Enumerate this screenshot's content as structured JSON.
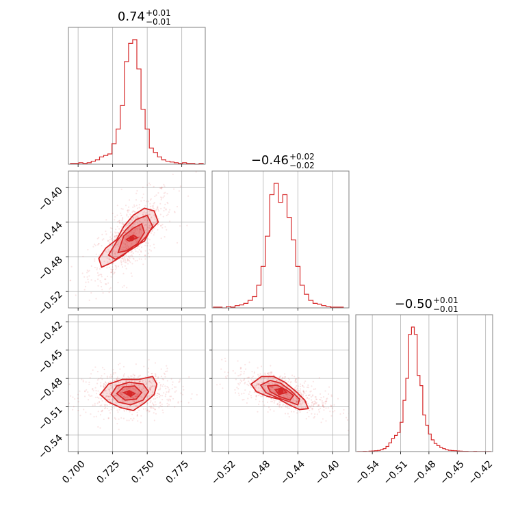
{
  "color": "#d62728",
  "chart_data": {
    "type": "corner",
    "grid": true,
    "parameters": [
      {
        "id": "p1",
        "range": [
          0.693,
          0.792
        ],
        "ticks": [
          0.7,
          0.725,
          0.75,
          0.775
        ],
        "tick_labels": [
          "0.700",
          "0.725",
          "0.750",
          "0.775"
        ],
        "title": {
          "value": "0.74",
          "plus": "+0.01",
          "minus": "−0.01"
        },
        "hist": {
          "bins": [
            0.696,
            0.699,
            0.702,
            0.705,
            0.708,
            0.711,
            0.714,
            0.717,
            0.72,
            0.723,
            0.726,
            0.729,
            0.732,
            0.735,
            0.738,
            0.741,
            0.744,
            0.747,
            0.75,
            0.753,
            0.756,
            0.759,
            0.762,
            0.765,
            0.768,
            0.771,
            0.774,
            0.777,
            0.78,
            0.783,
            0.786,
            0.789
          ],
          "counts": [
            1,
            1,
            2,
            1,
            2,
            4,
            6,
            10,
            12,
            14,
            28,
            48,
            80,
            140,
            165,
            170,
            130,
            75,
            48,
            22,
            16,
            10,
            6,
            4,
            3,
            2,
            1,
            2,
            1,
            1,
            0,
            1
          ]
        }
      },
      {
        "id": "p2",
        "range": [
          -0.539,
          -0.381
        ],
        "ticks": [
          -0.52,
          -0.48,
          -0.44,
          -0.4
        ],
        "tick_labels": [
          "−0.52",
          "−0.48",
          "−0.44",
          "−0.40"
        ],
        "title": {
          "value": "−0.46",
          "plus": "+0.02",
          "minus": "−0.02"
        },
        "hist": {
          "bins": [
            -0.535,
            -0.53,
            -0.525,
            -0.52,
            -0.515,
            -0.51,
            -0.505,
            -0.5,
            -0.495,
            -0.49,
            -0.485,
            -0.48,
            -0.475,
            -0.47,
            -0.465,
            -0.46,
            -0.455,
            -0.45,
            -0.445,
            -0.44,
            -0.435,
            -0.43,
            -0.425,
            -0.42,
            -0.415,
            -0.41,
            -0.405,
            -0.4,
            -0.395,
            -0.39
          ],
          "counts": [
            1,
            1,
            0,
            2,
            1,
            3,
            4,
            6,
            10,
            15,
            30,
            55,
            95,
            150,
            165,
            140,
            150,
            120,
            90,
            55,
            30,
            18,
            10,
            6,
            5,
            3,
            2,
            1,
            1,
            1
          ]
        }
      },
      {
        "id": "p3",
        "range": [
          -0.5575,
          -0.4125
        ],
        "ticks": [
          -0.54,
          -0.51,
          -0.48,
          -0.45,
          -0.42
        ],
        "tick_labels": [
          "−0.54",
          "−0.51",
          "−0.48",
          "−0.45",
          "−0.42"
        ],
        "title": {
          "value": "−0.50",
          "plus": "+0.01",
          "minus": "−0.01"
        },
        "hist": {
          "bins": [
            -0.554,
            -0.551,
            -0.548,
            -0.545,
            -0.542,
            -0.539,
            -0.536,
            -0.533,
            -0.53,
            -0.527,
            -0.524,
            -0.521,
            -0.518,
            -0.515,
            -0.512,
            -0.509,
            -0.506,
            -0.503,
            -0.5,
            -0.497,
            -0.494,
            -0.491,
            -0.488,
            -0.485,
            -0.482,
            -0.479,
            -0.476,
            -0.473,
            -0.47,
            -0.467,
            -0.464,
            -0.461,
            -0.458,
            -0.455,
            -0.452,
            -0.449,
            -0.446,
            -0.443,
            -0.44,
            -0.437,
            -0.434,
            -0.431,
            -0.428,
            -0.425,
            -0.422,
            -0.419,
            -0.416
          ],
          "counts": [
            1,
            1,
            2,
            1,
            3,
            4,
            6,
            8,
            12,
            20,
            35,
            60,
            90,
            110,
            130,
            200,
            350,
            500,
            800,
            850,
            800,
            520,
            450,
            250,
            180,
            120,
            80,
            55,
            40,
            28,
            20,
            12,
            9,
            7,
            6,
            4,
            3,
            2,
            2,
            1,
            1,
            2,
            1,
            1,
            1,
            0,
            1
          ]
        }
      }
    ],
    "pairs": [
      {
        "x": "p1",
        "y": "p2",
        "center": [
          0.738,
          -0.457
        ],
        "spread": [
          0.01,
          0.018
        ],
        "rho": 0.7,
        "levels": [
          [
            [
              0.735,
              -0.46
            ],
            [
              0.74,
              -0.455
            ],
            [
              0.743,
              -0.458
            ],
            [
              0.737,
              -0.462
            ]
          ],
          [
            [
              0.729,
              -0.475
            ],
            [
              0.733,
              -0.456
            ],
            [
              0.74,
              -0.447
            ],
            [
              0.746,
              -0.442
            ],
            [
              0.748,
              -0.452
            ],
            [
              0.743,
              -0.465
            ],
            [
              0.735,
              -0.473
            ]
          ],
          [
            [
              0.722,
              -0.478
            ],
            [
              0.728,
              -0.462
            ],
            [
              0.735,
              -0.448
            ],
            [
              0.742,
              -0.437
            ],
            [
              0.75,
              -0.432
            ],
            [
              0.754,
              -0.445
            ],
            [
              0.749,
              -0.457
            ],
            [
              0.743,
              -0.467
            ],
            [
              0.735,
              -0.475
            ],
            [
              0.727,
              -0.483
            ]
          ],
          [
            [
              0.715,
              -0.482
            ],
            [
              0.72,
              -0.47
            ],
            [
              0.728,
              -0.46
            ],
            [
              0.733,
              -0.445
            ],
            [
              0.74,
              -0.432
            ],
            [
              0.748,
              -0.424
            ],
            [
              0.755,
              -0.427
            ],
            [
              0.758,
              -0.44
            ],
            [
              0.752,
              -0.45
            ],
            [
              0.748,
              -0.462
            ],
            [
              0.74,
              -0.468
            ],
            [
              0.733,
              -0.478
            ],
            [
              0.724,
              -0.487
            ],
            [
              0.717,
              -0.492
            ]
          ]
        ]
      },
      {
        "x": "p1",
        "y": "p3",
        "center": [
          0.737,
          -0.496
        ],
        "spread": [
          0.011,
          0.008
        ],
        "rho": 0.1,
        "levels": [
          [
            [
              0.733,
              -0.495
            ],
            [
              0.737,
              -0.493
            ],
            [
              0.741,
              -0.496
            ],
            [
              0.738,
              -0.499
            ]
          ],
          [
            [
              0.728,
              -0.496
            ],
            [
              0.733,
              -0.489
            ],
            [
              0.741,
              -0.488
            ],
            [
              0.746,
              -0.495
            ],
            [
              0.742,
              -0.502
            ],
            [
              0.734,
              -0.503
            ]
          ],
          [
            [
              0.724,
              -0.497
            ],
            [
              0.728,
              -0.488
            ],
            [
              0.737,
              -0.484
            ],
            [
              0.747,
              -0.486
            ],
            [
              0.751,
              -0.494
            ],
            [
              0.747,
              -0.503
            ],
            [
              0.738,
              -0.508
            ],
            [
              0.729,
              -0.505
            ]
          ],
          [
            [
              0.716,
              -0.497
            ],
            [
              0.722,
              -0.486
            ],
            [
              0.732,
              -0.481
            ],
            [
              0.744,
              -0.481
            ],
            [
              0.754,
              -0.478
            ],
            [
              0.757,
              -0.486
            ],
            [
              0.755,
              -0.497
            ],
            [
              0.748,
              -0.506
            ],
            [
              0.74,
              -0.514
            ],
            [
              0.731,
              -0.511
            ],
            [
              0.722,
              -0.505
            ]
          ]
        ]
      },
      {
        "x": "p2",
        "y": "p3",
        "center": [
          -0.458,
          -0.494
        ],
        "spread": [
          0.018,
          0.008
        ],
        "rho": -0.6,
        "levels": [
          [
            [
              -0.466,
              -0.492
            ],
            [
              -0.458,
              -0.49
            ],
            [
              -0.453,
              -0.495
            ],
            [
              -0.462,
              -0.497
            ]
          ],
          [
            [
              -0.475,
              -0.488
            ],
            [
              -0.464,
              -0.487
            ],
            [
              -0.452,
              -0.493
            ],
            [
              -0.445,
              -0.498
            ],
            [
              -0.449,
              -0.503
            ],
            [
              -0.462,
              -0.499
            ],
            [
              -0.472,
              -0.494
            ]
          ],
          [
            [
              -0.483,
              -0.487
            ],
            [
              -0.472,
              -0.482
            ],
            [
              -0.46,
              -0.485
            ],
            [
              -0.448,
              -0.493
            ],
            [
              -0.438,
              -0.502
            ],
            [
              -0.44,
              -0.508
            ],
            [
              -0.452,
              -0.504
            ],
            [
              -0.465,
              -0.5
            ],
            [
              -0.477,
              -0.495
            ]
          ],
          [
            [
              -0.494,
              -0.486
            ],
            [
              -0.482,
              -0.478
            ],
            [
              -0.468,
              -0.478
            ],
            [
              -0.455,
              -0.484
            ],
            [
              -0.442,
              -0.494
            ],
            [
              -0.432,
              -0.503
            ],
            [
              -0.428,
              -0.512
            ],
            [
              -0.438,
              -0.513
            ],
            [
              -0.45,
              -0.508
            ],
            [
              -0.462,
              -0.502
            ],
            [
              -0.475,
              -0.499
            ],
            [
              -0.488,
              -0.494
            ]
          ]
        ]
      }
    ]
  }
}
